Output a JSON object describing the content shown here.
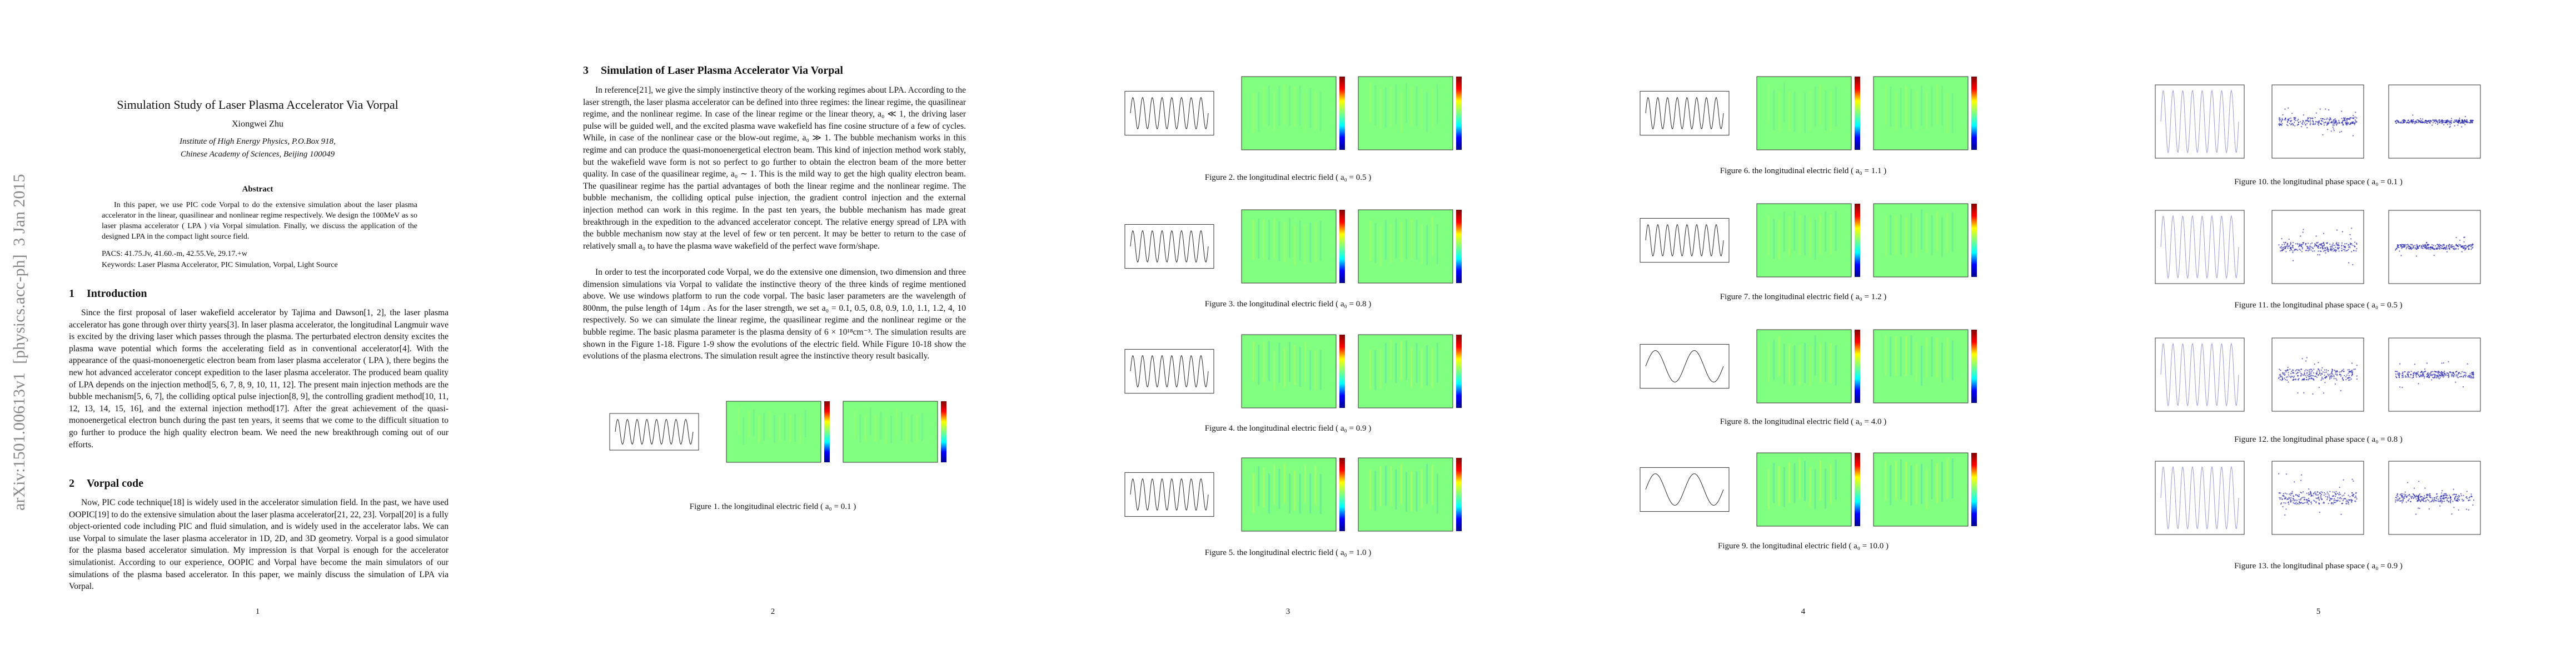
{
  "pages": [
    {
      "sidebar": "arXiv:1501.00613v1  [physics.acc-ph]  3 Jan 2015",
      "title": "Simulation Study of Laser Plasma Accelerator Via Vorpal",
      "author": "Xiongwei Zhu",
      "affiliation": [
        "Institute of High Energy Physics, P.O.Box 918,",
        "Chinese Academy of Sciences, Beijing 100049"
      ],
      "abstract_heading": "Abstract",
      "abstract": "In this paper, we use PIC code Vorpal to do the extensive simulation about the laser plasma accelerator in the linear, quasilinear and nonlinear regime respectively. We design the 100MeV as so laser plasma accelerator ( LPA ) via Vorpal simulation. Finally, we discuss the application of the designed LPA in the compact light source field.",
      "pacs": "PACS: 41.75.Jv, 41.60.-m, 42.55.Ve, 29.17.+w",
      "keywords": "Keywords: Laser Plasma Accelerator, PIC Simulation, Vorpal, Light Source",
      "sections": [
        {
          "number": "1",
          "heading": "Introduction",
          "paragraphs": [
            "Since the first proposal of laser wakefield accelerator by Tajima and Dawson[1, 2], the laser plasma accelerator has gone through over thirty years[3]. In laser plasma accelerator, the longitudinal Langmuir wave is excited by the driving laser which passes through the plasma. The perturbated electron density excites the plasma wave potential which forms the accelerating field as in conventional accelerator[4]. With the appearance of the quasi-monoenergetic electron beam from laser plasma accelerator ( LPA ), there begins the new hot advanced accelerator concept expedition to the laser plasma accelerator. The produced beam quality of LPA depends on the injection method[5, 6, 7, 8, 9, 10, 11, 12]. The present main injection methods are the bubble mechanism[5, 6, 7], the colliding optical pulse injection[8, 9], the controlling gradient method[10, 11, 12, 13, 14, 15, 16], and the external injection method[17]. After the great achievement of the quasi-monoenergetical electron bunch during the past ten years, it seems that we come to the difficult situation to go further to produce the high quality electron beam. We need the new breakthrough coming out of our efforts."
          ]
        },
        {
          "number": "2",
          "heading": "Vorpal code",
          "paragraphs": [
            "Now, PIC code technique[18] is widely used in the accelerator simulation field. In the past, we have used OOPIC[19] to do the extensive simulation about the laser plasma accelerator[21, 22, 23]. Vorpal[20] is a fully object-oriented code including PIC and fluid simulation, and is widely used in the accelerator labs. We can use Vorpal to simulate the laser plasma accelerator in 1D, 2D, and 3D geometry. Vorpal is a good simulator for the plasma based accelerator simulation. My impression is that Vorpal is enough for the accelerator simulationist. According to our experience, OOPIC and Vorpal have become the main simulators of our simulations of the plasma based accelerator. In this paper, we mainly discuss the simulation of LPA via Vorpal."
          ]
        }
      ],
      "page_number": "1"
    },
    {
      "sections": [
        {
          "number": "3",
          "heading": "Simulation of Laser Plasma Accelerator Via Vorpal",
          "paragraphs": [
            "In reference[21], we give the simply instinctive theory of the working regimes about LPA. According to the laser strength, the laser plasma accelerator can be defined into three regimes: the linear regime, the quasilinear regime, and the nonlinear regime. In case of the linear regime or the linear theory, a₀ ≪ 1, the driving laser pulse will be guided well, and the excited plasma wave wakefield has fine cosine structure of a few of cycles. While, in case of the nonlinear case or the blow-out regime, a₀ ≫ 1. The bubble mechanism works in this regime and can produce the quasi-monoenergetical electron beam. This kind of injection method work stably, but the wakefield wave form is not so perfect to go further to obtain the electron beam of the more better quality. In case of the quasilinear regime, a₀ ∼ 1. This is the mild way to get the high quality electron beam. The quasilinear regime has the partial advantages of both the linear regime and the nonlinear regime. The bubble mechanism, the colliding optical pulse injection, the gradient control injection and the external injection method can work in this regime. In the past ten years, the bubble mechanism has made great breakthrough in the expedition to the advanced accelerator concept. The relative energy spread of LPA with the bubble mechanism now stay at the level of few or ten percent. It may be better to return to the case of relatively small a₀ to have the plasma wave wakefield of the perfect wave form/shape.",
            "In order to test the incorporated code Vorpal, we do the extensive one dimension, two dimension and three dimension simulations via Vorpal to validate the instinctive theory of the three kinds of regime mentioned above. We use windows platform to run the code vorpal. The basic laser parameters are the wavelength of 800nm, the pulse length of 14µm . As for the laser strength, we set a₀ = 0.1, 0.5, 0.8, 0.9, 1.0, 1.1, 1.2, 4, 10 respectively. So we can simulate the linear regime, the quasilinear regime and the nonlinear regime or the bubble regime. The basic plasma parameter is the plasma density of 6 × 10¹⁸cm⁻³. The simulation results are shown in the Figure 1-18. Figure 1-9 show the evolutions of the electric field. While Figure 10-18 show the evolutions of the plasma electrons. The simulation result agree the instinctive theory result basically."
          ]
        }
      ],
      "figures": [
        {
          "caption": "Figure 1. the longitudinal electric field ( a₀ = 0.1 )"
        }
      ],
      "page_number": "2"
    },
    {
      "figures": [
        {
          "caption": "Figure 2. the longitudinal electric field ( a₀ = 0.5 )"
        },
        {
          "caption": "Figure 3. the longitudinal electric field ( a₀ = 0.8 )"
        },
        {
          "caption": "Figure 4. the longitudinal electric field ( a₀ = 0.9 )"
        },
        {
          "caption": "Figure 5. the longitudinal electric field ( a₀ = 1.0 )"
        }
      ],
      "page_number": "3"
    },
    {
      "figures": [
        {
          "caption": "Figure 6. the longitudinal electric field ( a₀ = 1.1 )"
        },
        {
          "caption": "Figure 7. the longitudinal electric field ( a₀ = 1.2 )"
        },
        {
          "caption": "Figure 8. the longitudinal electric field ( a₀ = 4.0 )"
        },
        {
          "caption": "Figure 9. the longitudinal electric field ( a₀ = 10.0 )"
        }
      ],
      "page_number": "4"
    },
    {
      "figures": [
        {
          "caption": "Figure 10. the longitudinal phase space ( a₀ = 0.1 )"
        },
        {
          "caption": "Figure 11. the longitudinal phase space ( a₀ = 0.5 )"
        },
        {
          "caption": "Figure 12. the longitudinal phase space ( a₀ = 0.8 )"
        },
        {
          "caption": "Figure 13. the longitudinal phase space ( a₀ = 0.9 )"
        }
      ],
      "page_number": "5"
    }
  ]
}
